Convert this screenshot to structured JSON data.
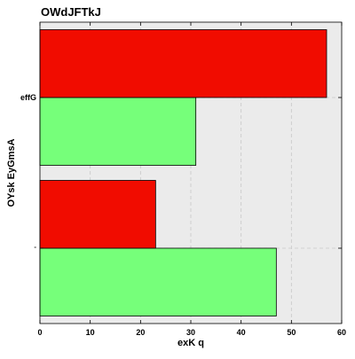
{
  "chart_data": {
    "type": "bar",
    "orientation": "horizontal",
    "title": "OWdJFTkJ",
    "xlabel": "exK q",
    "ylabel": "OYsk EyGmsA",
    "categories": [
      "°",
      "effG"
    ],
    "xlim": [
      0,
      60
    ],
    "xticks": [
      0,
      10,
      20,
      30,
      40,
      50,
      60
    ],
    "grid": true,
    "legend": "none",
    "series": [
      {
        "color": "#76ff7a",
        "values": [
          47,
          31
        ]
      },
      {
        "color": "#f10c00",
        "values": [
          23,
          57
        ]
      }
    ]
  }
}
